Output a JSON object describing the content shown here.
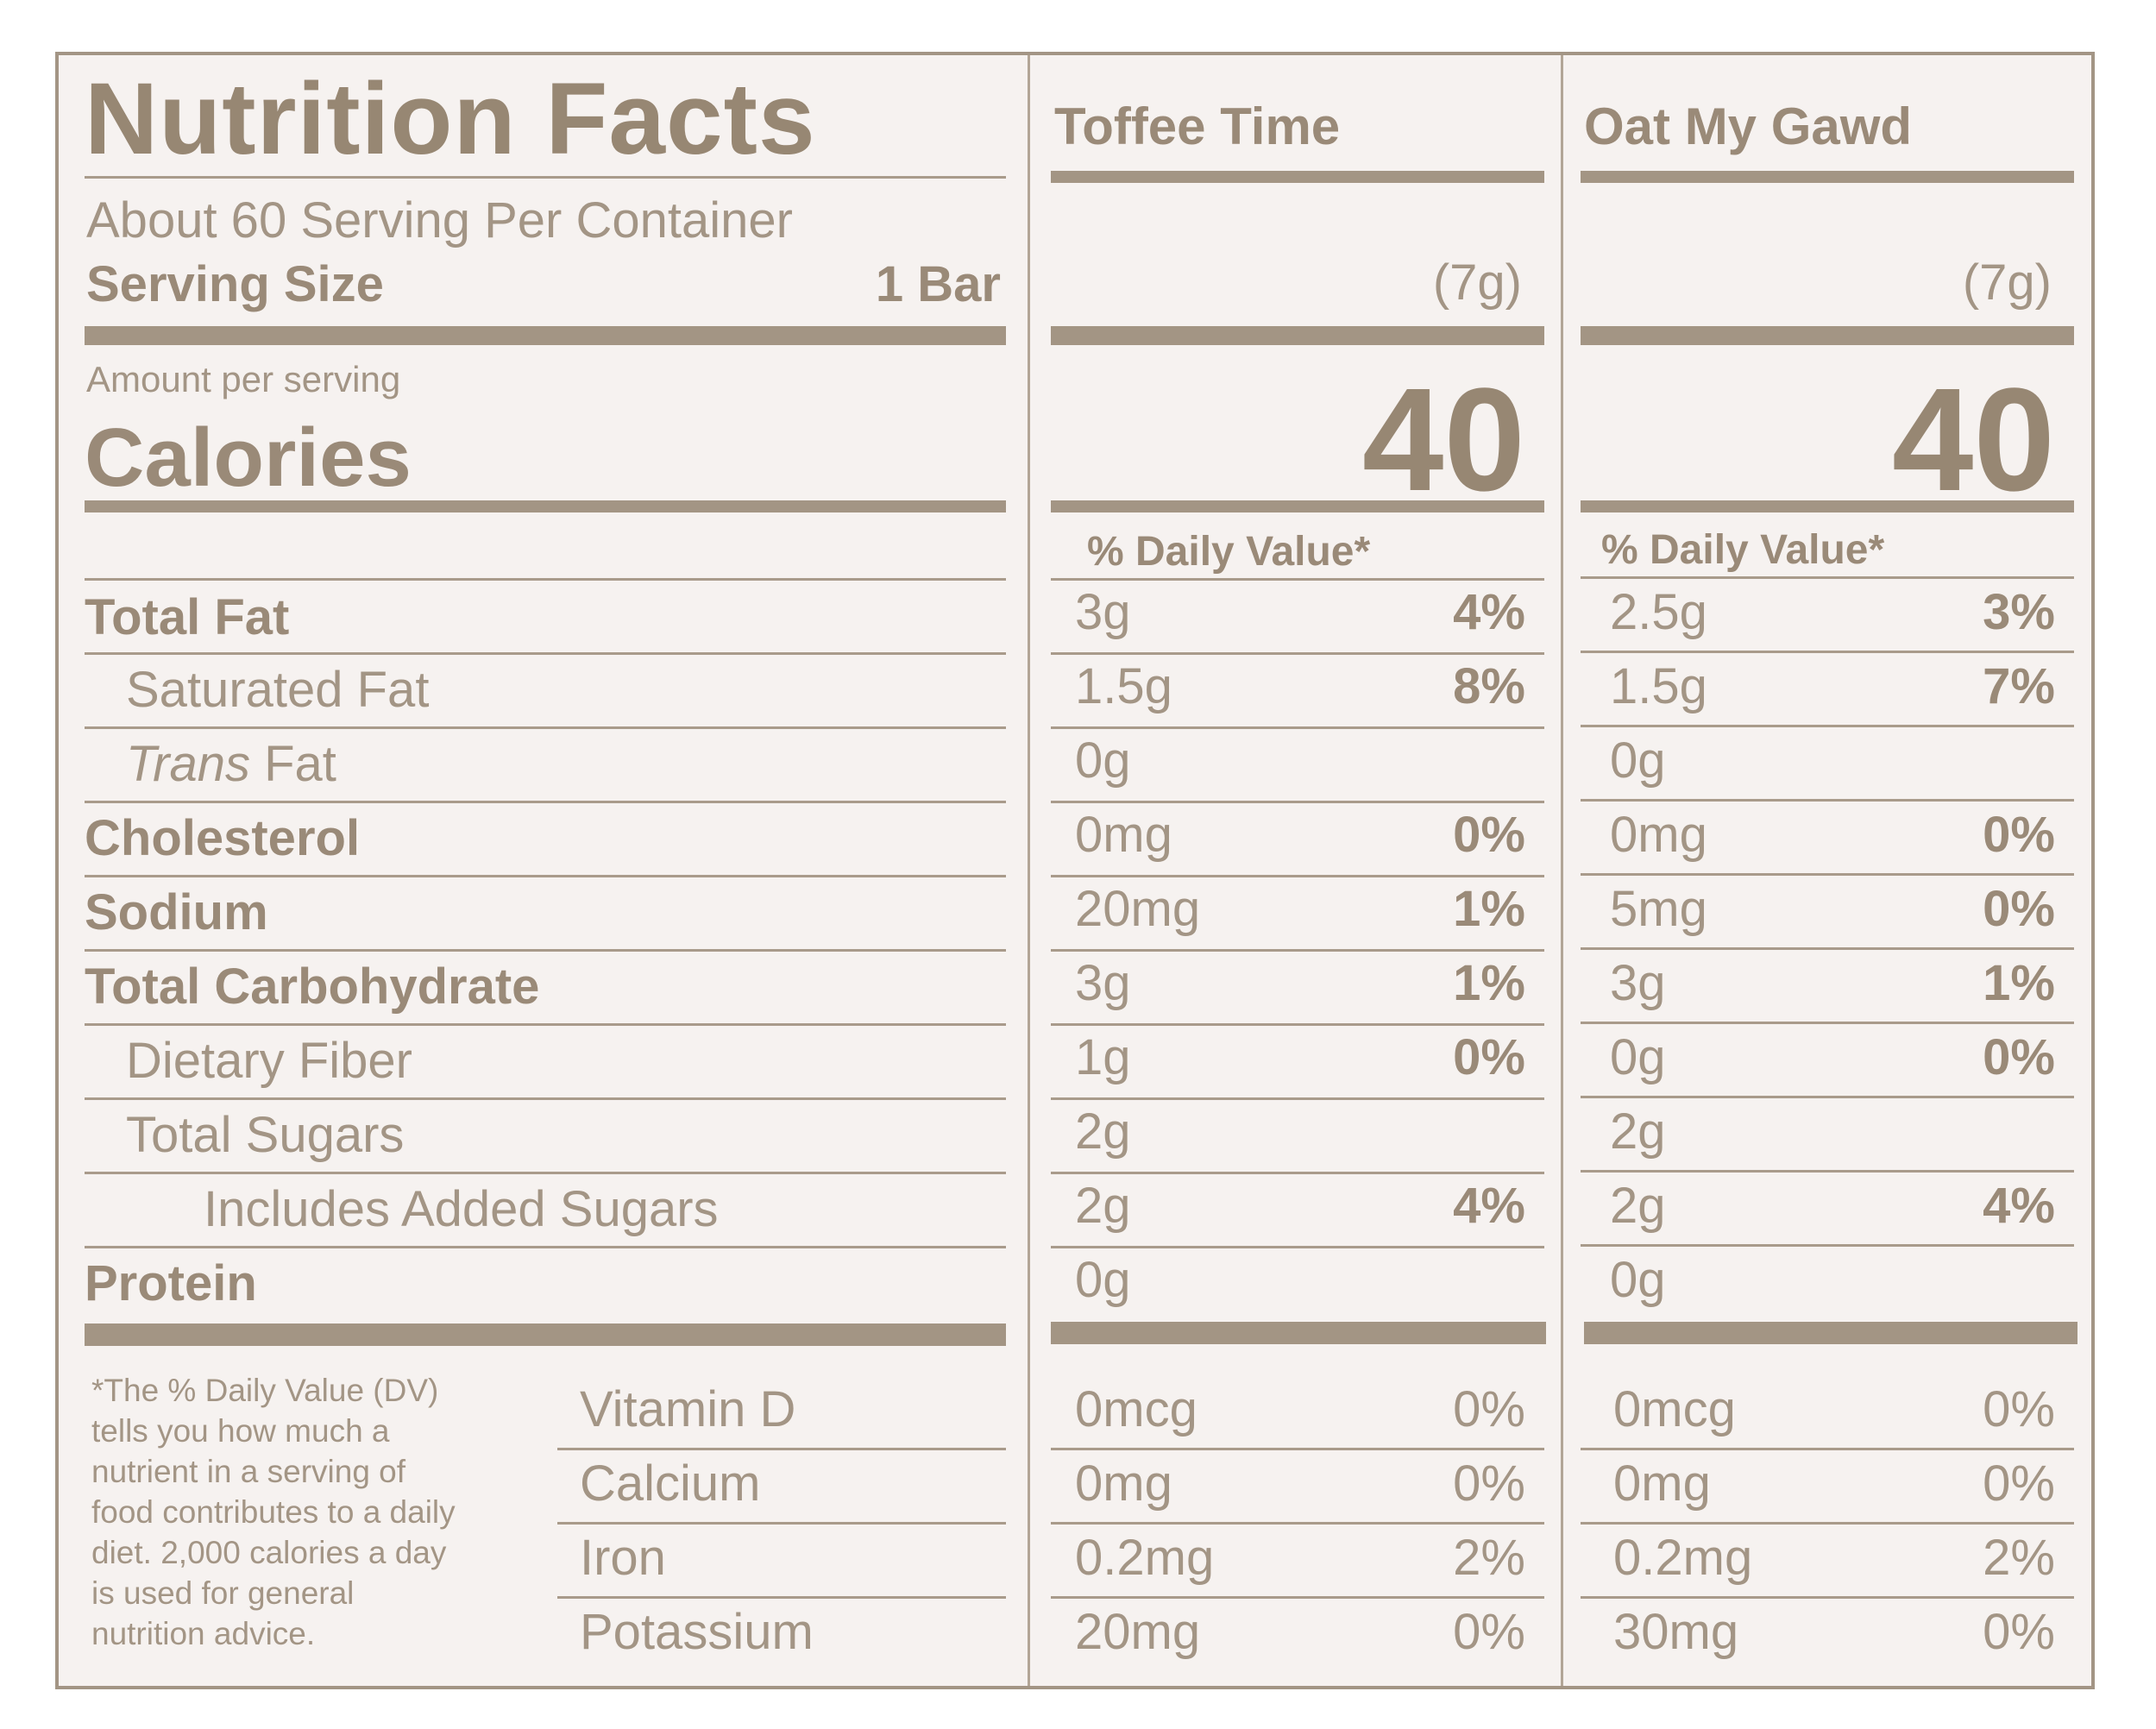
{
  "title": "Nutrition Facts",
  "servings_per_container": "About 60 Serving Per Container",
  "serving_size_label": "Serving Size",
  "serving_size_value": "1 Bar",
  "amount_per_serving": "Amount per serving",
  "calories_label": "Calories",
  "dv_header": "% Daily Value*",
  "products": [
    {
      "name": "Toffee Time",
      "serving_weight": "(7g)",
      "calories": "40"
    },
    {
      "name": "Oat My Gawd",
      "serving_weight": "(7g)",
      "calories": "40"
    }
  ],
  "nutrients": [
    {
      "label": "Total Fat",
      "p1_amount": "3g",
      "p1_dv": "4%",
      "p2_amount": "2.5g",
      "p2_dv": "3%"
    },
    {
      "label": "Saturated Fat",
      "p1_amount": "1.5g",
      "p1_dv": "8%",
      "p2_amount": "1.5g",
      "p2_dv": "7%"
    },
    {
      "label_italic": "Trans",
      "label_rest": " Fat",
      "p1_amount": "0g",
      "p1_dv": "",
      "p2_amount": "0g",
      "p2_dv": ""
    },
    {
      "label": "Cholesterol",
      "p1_amount": "0mg",
      "p1_dv": "0%",
      "p2_amount": "0mg",
      "p2_dv": "0%"
    },
    {
      "label": "Sodium",
      "p1_amount": "20mg",
      "p1_dv": "1%",
      "p2_amount": "5mg",
      "p2_dv": "0%"
    },
    {
      "label": "Total Carbohydrate",
      "p1_amount": "3g",
      "p1_dv": "1%",
      "p2_amount": "3g",
      "p2_dv": "1%"
    },
    {
      "label": "Dietary Fiber",
      "p1_amount": "1g",
      "p1_dv": "0%",
      "p2_amount": "0g",
      "p2_dv": "0%"
    },
    {
      "label": "Total Sugars",
      "p1_amount": "2g",
      "p1_dv": "",
      "p2_amount": "2g",
      "p2_dv": ""
    },
    {
      "label": "Includes Added Sugars",
      "p1_amount": "2g",
      "p1_dv": "4%",
      "p2_amount": "2g",
      "p2_dv": "4%"
    },
    {
      "label": "Protein",
      "p1_amount": "0g",
      "p1_dv": "",
      "p2_amount": "0g",
      "p2_dv": ""
    }
  ],
  "vitamins": [
    {
      "label": "Vitamin D",
      "p1_amount": "0mcg",
      "p1_dv": "0%",
      "p2_amount": "0mcg",
      "p2_dv": "0%"
    },
    {
      "label": "Calcium",
      "p1_amount": "0mg",
      "p1_dv": "0%",
      "p2_amount": "0mg",
      "p2_dv": "0%"
    },
    {
      "label": "Iron",
      "p1_amount": "0.2mg",
      "p1_dv": "2%",
      "p2_amount": "0.2mg",
      "p2_dv": "2%"
    },
    {
      "label": "Potassium",
      "p1_amount": "20mg",
      "p1_dv": "0%",
      "p2_amount": "30mg",
      "p2_dv": "0%"
    }
  ],
  "footnote_lines": [
    "*The % Daily Value (DV)",
    "tells you how much a",
    "nutrient in a serving of",
    "food contributes to a daily",
    "diet. 2,000 calories a day",
    "is used for general",
    "nutrition advice."
  ]
}
